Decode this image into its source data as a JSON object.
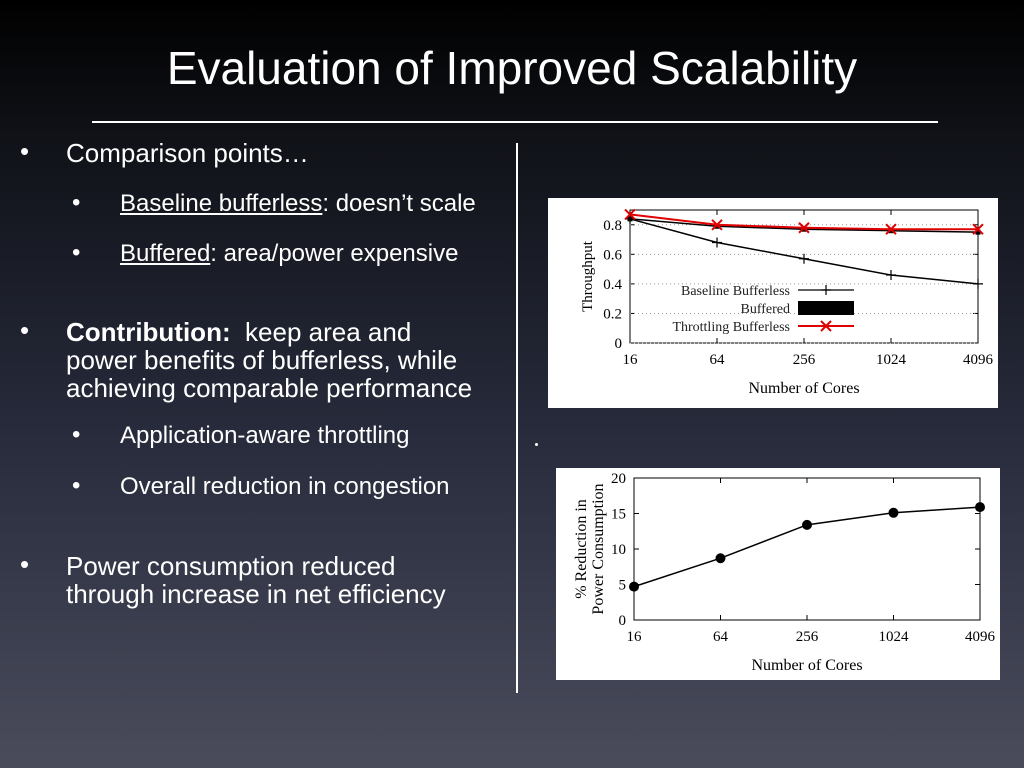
{
  "slide": {
    "title": "Evaluation of Improved Scalability"
  },
  "bullets": {
    "comparison": "Comparison points…",
    "baseline_link": "Baseline bufferless",
    "baseline_rest": ":  doesn’t scale",
    "buffered_link": "Buffered",
    "buffered_rest": ":  area/power expensive",
    "contribution_bold": "Contribution:",
    "contribution_line1": "  keep area and",
    "contribution_line2": "power benefits of bufferless, while",
    "contribution_line3": "achieving comparable performance",
    "sub_throttling": "Application-aware throttling",
    "sub_congestion": "Overall reduction in congestion",
    "power_line1": "Power consumption reduced",
    "power_line2": "through increase in net efficiency"
  },
  "chart_data": [
    {
      "type": "line",
      "title": "",
      "xlabel": "Number of Cores",
      "ylabel": "Throughput",
      "categories": [
        "16",
        "64",
        "256",
        "1024",
        "4096"
      ],
      "yticks": [
        "0",
        "0.2",
        "0.4",
        "0.6",
        "0.8"
      ],
      "ylim": [
        0,
        0.9
      ],
      "series": [
        {
          "name": "Baseline Bufferless",
          "values": [
            0.84,
            0.68,
            0.57,
            0.46,
            0.4
          ],
          "color": "#000000",
          "marker": "+"
        },
        {
          "name": "Buffered",
          "values": [
            0.84,
            0.79,
            0.77,
            0.76,
            0.75
          ],
          "color": "#000000",
          "marker": "box"
        },
        {
          "name": "Throttling Bufferless",
          "values": [
            0.87,
            0.8,
            0.78,
            0.77,
            0.77
          ],
          "color": "#e00000",
          "marker": "x"
        }
      ],
      "legend": "center-right"
    },
    {
      "type": "line",
      "title": "",
      "xlabel": "Number of Cores",
      "ylabel": "% Reduction in Power Consumption",
      "categories": [
        "16",
        "64",
        "256",
        "1024",
        "4096"
      ],
      "yticks": [
        "0",
        "5",
        "10",
        "15",
        "20"
      ],
      "ylim": [
        0,
        20
      ],
      "series": [
        {
          "values": [
            4.7,
            8.7,
            13.4,
            15.1,
            15.9
          ],
          "color": "#000000",
          "marker": "dot"
        }
      ]
    }
  ]
}
